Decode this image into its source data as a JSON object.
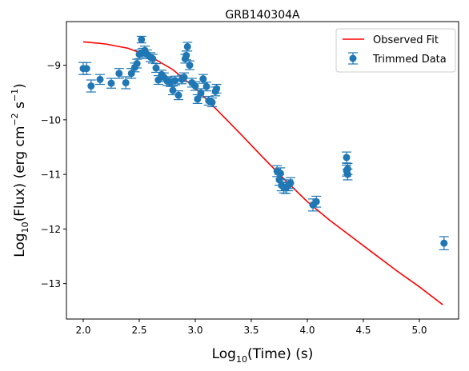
{
  "chart_data": {
    "type": "scatter",
    "title": "GRB140304A",
    "xlabel": "Log10(Time) (s)",
    "ylabel": "Log10(Flux) (erg cm-2 s-1)",
    "xlim": [
      1.85,
      5.35
    ],
    "ylim": [
      -13.65,
      -8.2
    ],
    "xticks": [
      2.0,
      2.5,
      3.0,
      3.5,
      4.0,
      4.5,
      5.0
    ],
    "xtick_labels": [
      "2.0",
      "2.5",
      "3.0",
      "3.5",
      "4.0",
      "4.5",
      "5.0"
    ],
    "yticks": [
      -9,
      -10,
      -11,
      -12,
      -13
    ],
    "ytick_labels": [
      "−9",
      "−10",
      "−11",
      "−12",
      "−13"
    ],
    "grid": false,
    "legend_position": "top-right",
    "colors": {
      "fit": "#ff0000",
      "data": "#1f77b4"
    },
    "series": [
      {
        "name": "Observed Fit",
        "kind": "line",
        "x": [
          2.0,
          2.2,
          2.4,
          2.6,
          2.8,
          3.0,
          3.2,
          3.4,
          3.6,
          3.8,
          4.0,
          4.2,
          4.4,
          4.6,
          4.8,
          5.0,
          5.21
        ],
        "y": [
          -8.57,
          -8.61,
          -8.69,
          -8.84,
          -9.08,
          -9.42,
          -9.83,
          -10.25,
          -10.68,
          -11.1,
          -11.5,
          -11.84,
          -12.15,
          -12.46,
          -12.77,
          -13.06,
          -13.39
        ]
      },
      {
        "name": "Trimmed Data",
        "kind": "errorbar",
        "x": [
          2.0,
          2.03,
          2.07,
          2.15,
          2.25,
          2.32,
          2.38,
          2.43,
          2.46,
          2.48,
          2.5,
          2.52,
          2.53,
          2.55,
          2.57,
          2.6,
          2.62,
          2.65,
          2.67,
          2.7,
          2.72,
          2.75,
          2.78,
          2.8,
          2.82,
          2.85,
          2.88,
          2.9,
          2.91,
          2.92,
          2.93,
          2.95,
          2.97,
          3.0,
          3.02,
          3.05,
          3.07,
          3.1,
          3.12,
          3.15,
          3.18,
          3.19,
          3.73,
          3.75,
          3.76,
          3.77,
          3.79,
          3.81,
          3.83,
          3.85,
          4.05,
          4.08,
          4.35,
          4.35,
          4.36,
          4.36,
          5.22
        ],
        "y": [
          -9.06,
          -9.06,
          -9.38,
          -9.26,
          -9.33,
          -9.15,
          -9.32,
          -9.15,
          -9.04,
          -8.97,
          -8.8,
          -8.53,
          -8.77,
          -8.73,
          -8.8,
          -8.85,
          -8.88,
          -9.05,
          -9.27,
          -9.17,
          -9.22,
          -9.29,
          -9.31,
          -9.46,
          -9.28,
          -9.55,
          -9.26,
          -9.22,
          -8.88,
          -8.82,
          -8.66,
          -9.0,
          -9.32,
          -9.38,
          -9.62,
          -9.51,
          -9.25,
          -9.39,
          -9.65,
          -9.68,
          -9.48,
          -9.43,
          -10.94,
          -11.1,
          -10.98,
          -11.2,
          -11.24,
          -11.25,
          -11.2,
          -11.16,
          -11.56,
          -11.5,
          -10.69,
          -10.93,
          -11.0,
          -10.9,
          -12.26
        ],
        "yerr": [
          0.11,
          0.11,
          0.11,
          0.09,
          0.09,
          0.09,
          0.11,
          0.09,
          0.08,
          0.08,
          0.08,
          0.06,
          0.08,
          0.08,
          0.08,
          0.08,
          0.08,
          0.08,
          0.08,
          0.08,
          0.08,
          0.08,
          0.08,
          0.08,
          0.08,
          0.08,
          0.08,
          0.08,
          0.08,
          0.08,
          0.08,
          0.08,
          0.08,
          0.08,
          0.08,
          0.08,
          0.08,
          0.08,
          0.08,
          0.08,
          0.08,
          0.08,
          0.1,
          0.1,
          0.1,
          0.1,
          0.1,
          0.1,
          0.1,
          0.1,
          0.11,
          0.1,
          0.1,
          0.1,
          0.1,
          0.1,
          0.12
        ]
      }
    ]
  }
}
